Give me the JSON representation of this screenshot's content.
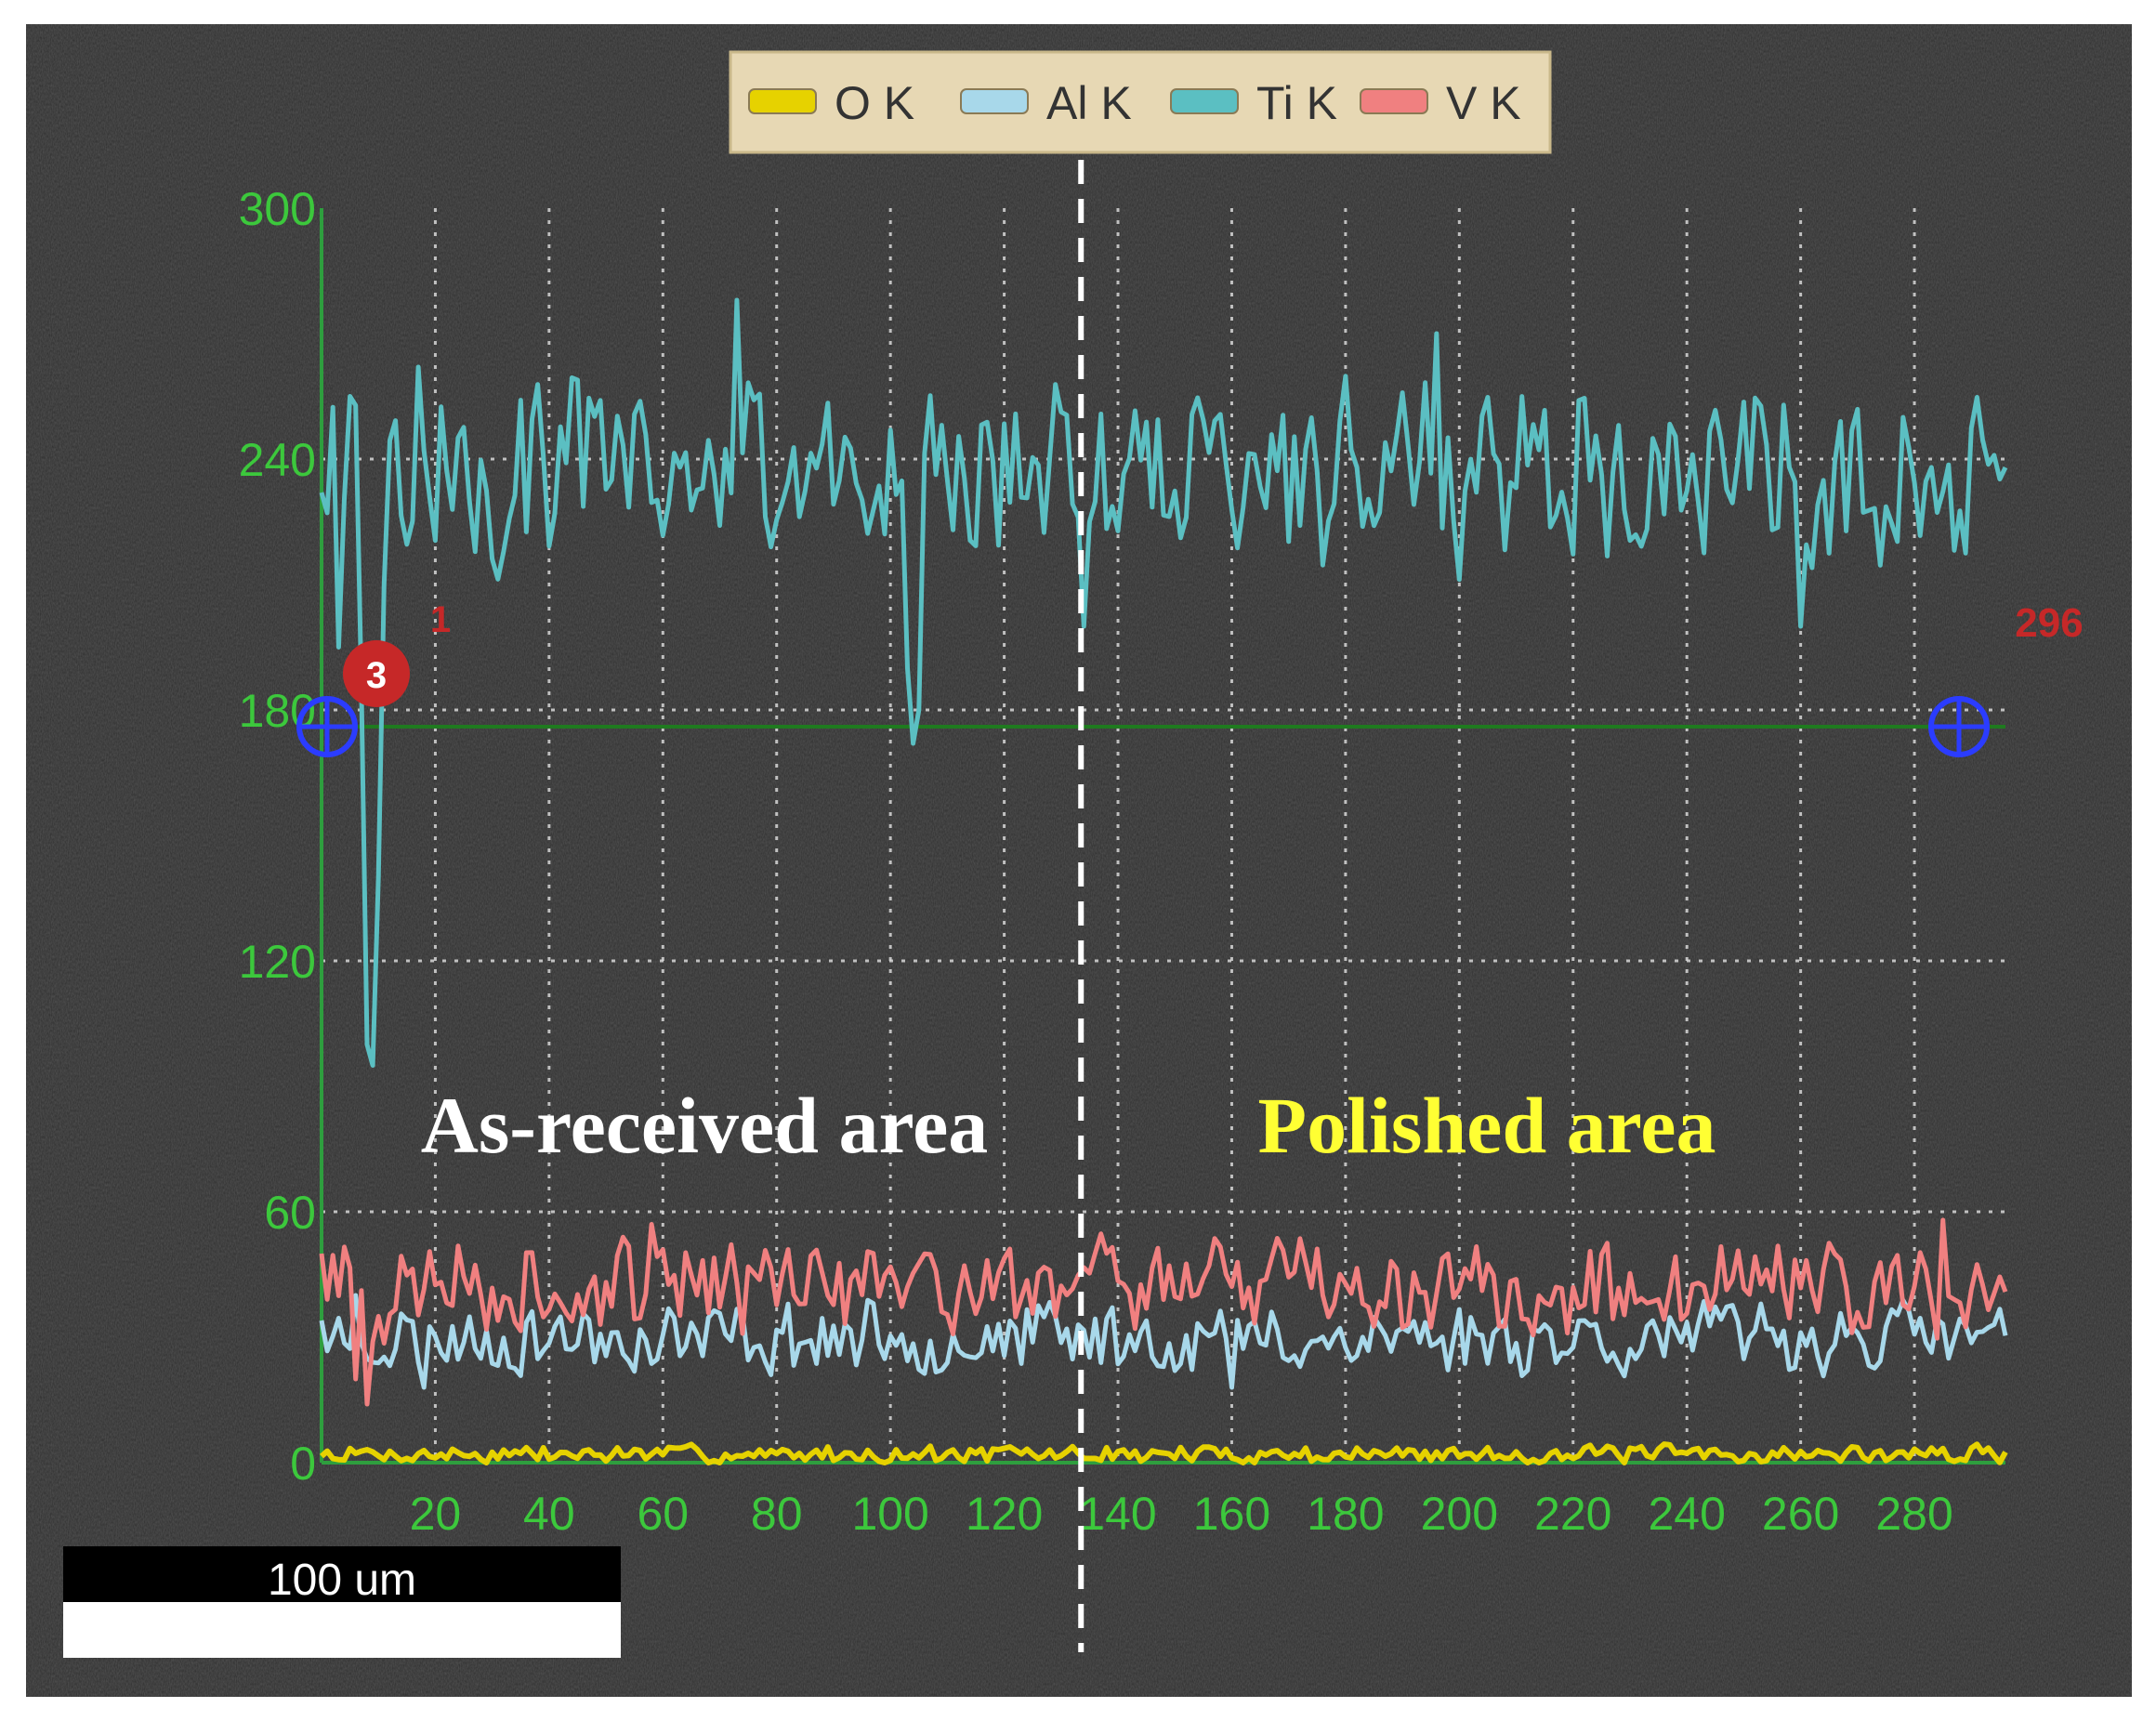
{
  "chart_data": {
    "type": "line",
    "title": "",
    "xlabel": "",
    "ylabel": "",
    "xlim": [
      0,
      296
    ],
    "ylim": [
      0,
      300
    ],
    "x_ticks": [
      "20",
      "40",
      "60",
      "80",
      "100",
      "120",
      "140",
      "160",
      "180",
      "200",
      "220",
      "240",
      "260",
      "280"
    ],
    "y_ticks": [
      "0",
      "60",
      "120",
      "180",
      "240",
      "300"
    ],
    "grid": true,
    "legend_position": "top-center",
    "series": [
      {
        "name": "O K",
        "color": "#e6d200",
        "mean": 2,
        "amp": 1.5,
        "seed": 7,
        "keypoints": []
      },
      {
        "name": "Al K",
        "color": "#a8d8ea",
        "mean": 30,
        "amp": 6,
        "seed": 23,
        "keypoints": [
          [
            0,
            34
          ],
          [
            6,
            40
          ],
          [
            9,
            24
          ],
          [
            18,
            18
          ],
          [
            150,
            22
          ],
          [
            160,
            18
          ]
        ]
      },
      {
        "name": "Ti K",
        "color": "#5bbfc2",
        "mean": 238,
        "amp": 16,
        "seed": 101,
        "keypoints": [
          [
            0,
            232
          ],
          [
            3,
            195
          ],
          [
            5,
            255
          ],
          [
            7,
            185
          ],
          [
            8,
            100
          ],
          [
            9,
            95
          ],
          [
            10,
            140
          ],
          [
            11,
            210
          ],
          [
            17,
            262
          ],
          [
            73,
            278
          ],
          [
            103,
            190
          ],
          [
            104,
            172
          ],
          [
            105,
            180
          ],
          [
            134,
            200
          ],
          [
            135,
            225
          ],
          [
            196,
            270
          ],
          [
            260,
            200
          ],
          [
            262,
            214
          ],
          [
            296,
            238
          ]
        ]
      },
      {
        "name": "V K",
        "color": "#f08080",
        "mean": 42,
        "amp": 8,
        "seed": 57,
        "keypoints": [
          [
            0,
            50
          ],
          [
            6,
            20
          ],
          [
            8,
            14
          ],
          [
            10,
            35
          ],
          [
            58,
            57
          ],
          [
            285,
            58
          ]
        ]
      }
    ],
    "reference_line": {
      "y": 176,
      "color": "#1f7a1f"
    },
    "region_divider_x": 133.5,
    "region_labels": [
      {
        "text": "As-received area",
        "color": "#ffffff"
      },
      {
        "text": "Polished area",
        "color": "#ffff33"
      }
    ],
    "markers": [
      {
        "label": "3",
        "color": "#c62828"
      },
      {
        "label": "1",
        "color": "#c62828"
      },
      {
        "label": "296",
        "color": "#c62828"
      }
    ],
    "scale_bar": {
      "label": "100 um"
    }
  }
}
